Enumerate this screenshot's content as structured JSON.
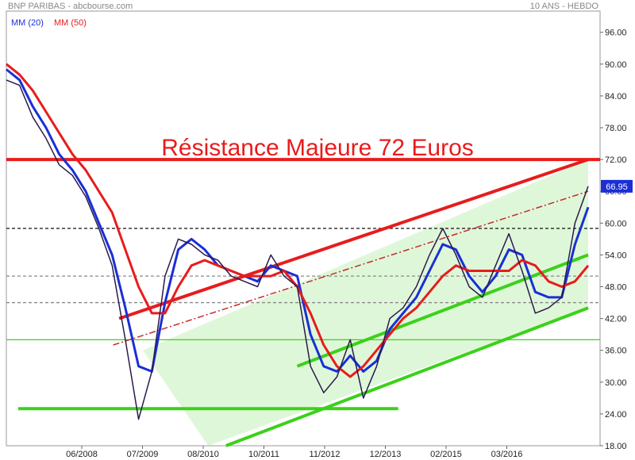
{
  "header": {
    "title": "BNP PARIBAS - abcbourse.com",
    "period": "10 ANS - HEBDO"
  },
  "legend": {
    "ma20": {
      "label": "MM (20)",
      "color": "#1a2fd6"
    },
    "ma50": {
      "label": "MM (50)",
      "color": "#e81c1c"
    }
  },
  "annotation": {
    "text": "Résistance Majeure 72 Euros",
    "color": "#e81c1c"
  },
  "last_price": {
    "label": "66.95",
    "value": 66.95,
    "color": "#1a2fd6"
  },
  "chart_data": {
    "type": "line",
    "title": "",
    "xlabel": "",
    "ylabel": "",
    "ylim": [
      18,
      100
    ],
    "x_ticks": [
      "06/2008",
      "07/2009",
      "08/2010",
      "10/2011",
      "11/2012",
      "12/2013",
      "02/2015",
      "03/2016"
    ],
    "y_ticks": [
      96,
      90,
      84,
      78,
      72,
      66,
      60,
      54,
      48,
      42,
      36,
      30,
      24,
      18
    ],
    "y_tick_labels": [
      "96.00",
      "90.00",
      "84.00",
      "78.00",
      "72.00",
      "66.00",
      "60.00",
      "54.00",
      "48.00",
      "42.00",
      "36.00",
      "30.00",
      "24.00",
      "18.00"
    ],
    "grid": false,
    "series": [
      {
        "name": "MM (20)",
        "color": "#1a2fd6",
        "values": [
          89,
          87,
          82,
          78,
          73,
          70,
          66,
          60,
          54,
          44,
          33,
          32,
          45,
          55,
          57,
          55,
          52,
          51,
          50,
          49,
          52,
          51,
          50,
          39,
          33,
          32,
          35,
          32,
          34,
          40,
          43,
          46,
          51,
          56,
          55,
          50,
          47,
          50,
          55,
          54,
          47,
          46,
          46,
          56,
          63
        ]
      },
      {
        "name": "MM (50)",
        "color": "#e81c1c",
        "values": [
          90,
          88,
          85,
          81,
          77,
          73,
          70,
          66,
          62,
          55,
          48,
          43,
          43,
          48,
          52,
          53,
          52,
          51,
          50,
          50,
          50,
          51,
          48,
          43,
          37,
          33,
          31,
          33,
          36,
          39,
          42,
          44,
          47,
          50,
          52,
          51,
          51,
          51,
          51,
          53,
          52,
          49,
          48,
          49,
          52
        ]
      },
      {
        "name": "",
        "color": "#2a1a4a",
        "values": [
          87,
          86,
          80,
          76,
          71,
          69,
          65,
          59,
          52,
          38,
          23,
          32,
          50,
          57,
          56,
          54,
          53,
          50,
          49,
          48,
          54,
          50,
          48,
          33,
          28,
          31,
          38,
          27,
          33,
          42,
          44,
          48,
          54,
          59,
          54,
          48,
          46,
          52,
          58,
          51,
          43,
          44,
          46,
          60,
          66.95
        ]
      }
    ],
    "hlines": [
      {
        "y": 72,
        "color": "#e81c1c",
        "style": "solid"
      },
      {
        "y": 59,
        "color": "#111111",
        "style": "dashed"
      },
      {
        "y": 50,
        "color": "#888888",
        "style": "dashed"
      },
      {
        "y": 45,
        "color": "#888888",
        "style": "dashed"
      },
      {
        "y": 38,
        "color": "#3bd11b",
        "style": "solid"
      }
    ],
    "channels": [
      {
        "name": "red resistance",
        "color": "#e81c1c",
        "from": [
          0.19,
          42
        ],
        "to": [
          0.98,
          72
        ]
      },
      {
        "name": "red dash-dot",
        "color": "#c62a2a",
        "from": [
          0.18,
          37
        ],
        "to": [
          0.98,
          66
        ]
      },
      {
        "name": "green support",
        "color": "#3bd11b",
        "from": [
          0.37,
          18
        ],
        "to": [
          0.98,
          44
        ]
      },
      {
        "name": "green mid",
        "color": "#3bd11b",
        "from": [
          0.49,
          33
        ],
        "to": [
          0.98,
          54
        ]
      },
      {
        "name": "green support low",
        "color": "#3bd11b",
        "from": [
          0.02,
          25
        ],
        "to": [
          0.66,
          25
        ]
      }
    ]
  }
}
